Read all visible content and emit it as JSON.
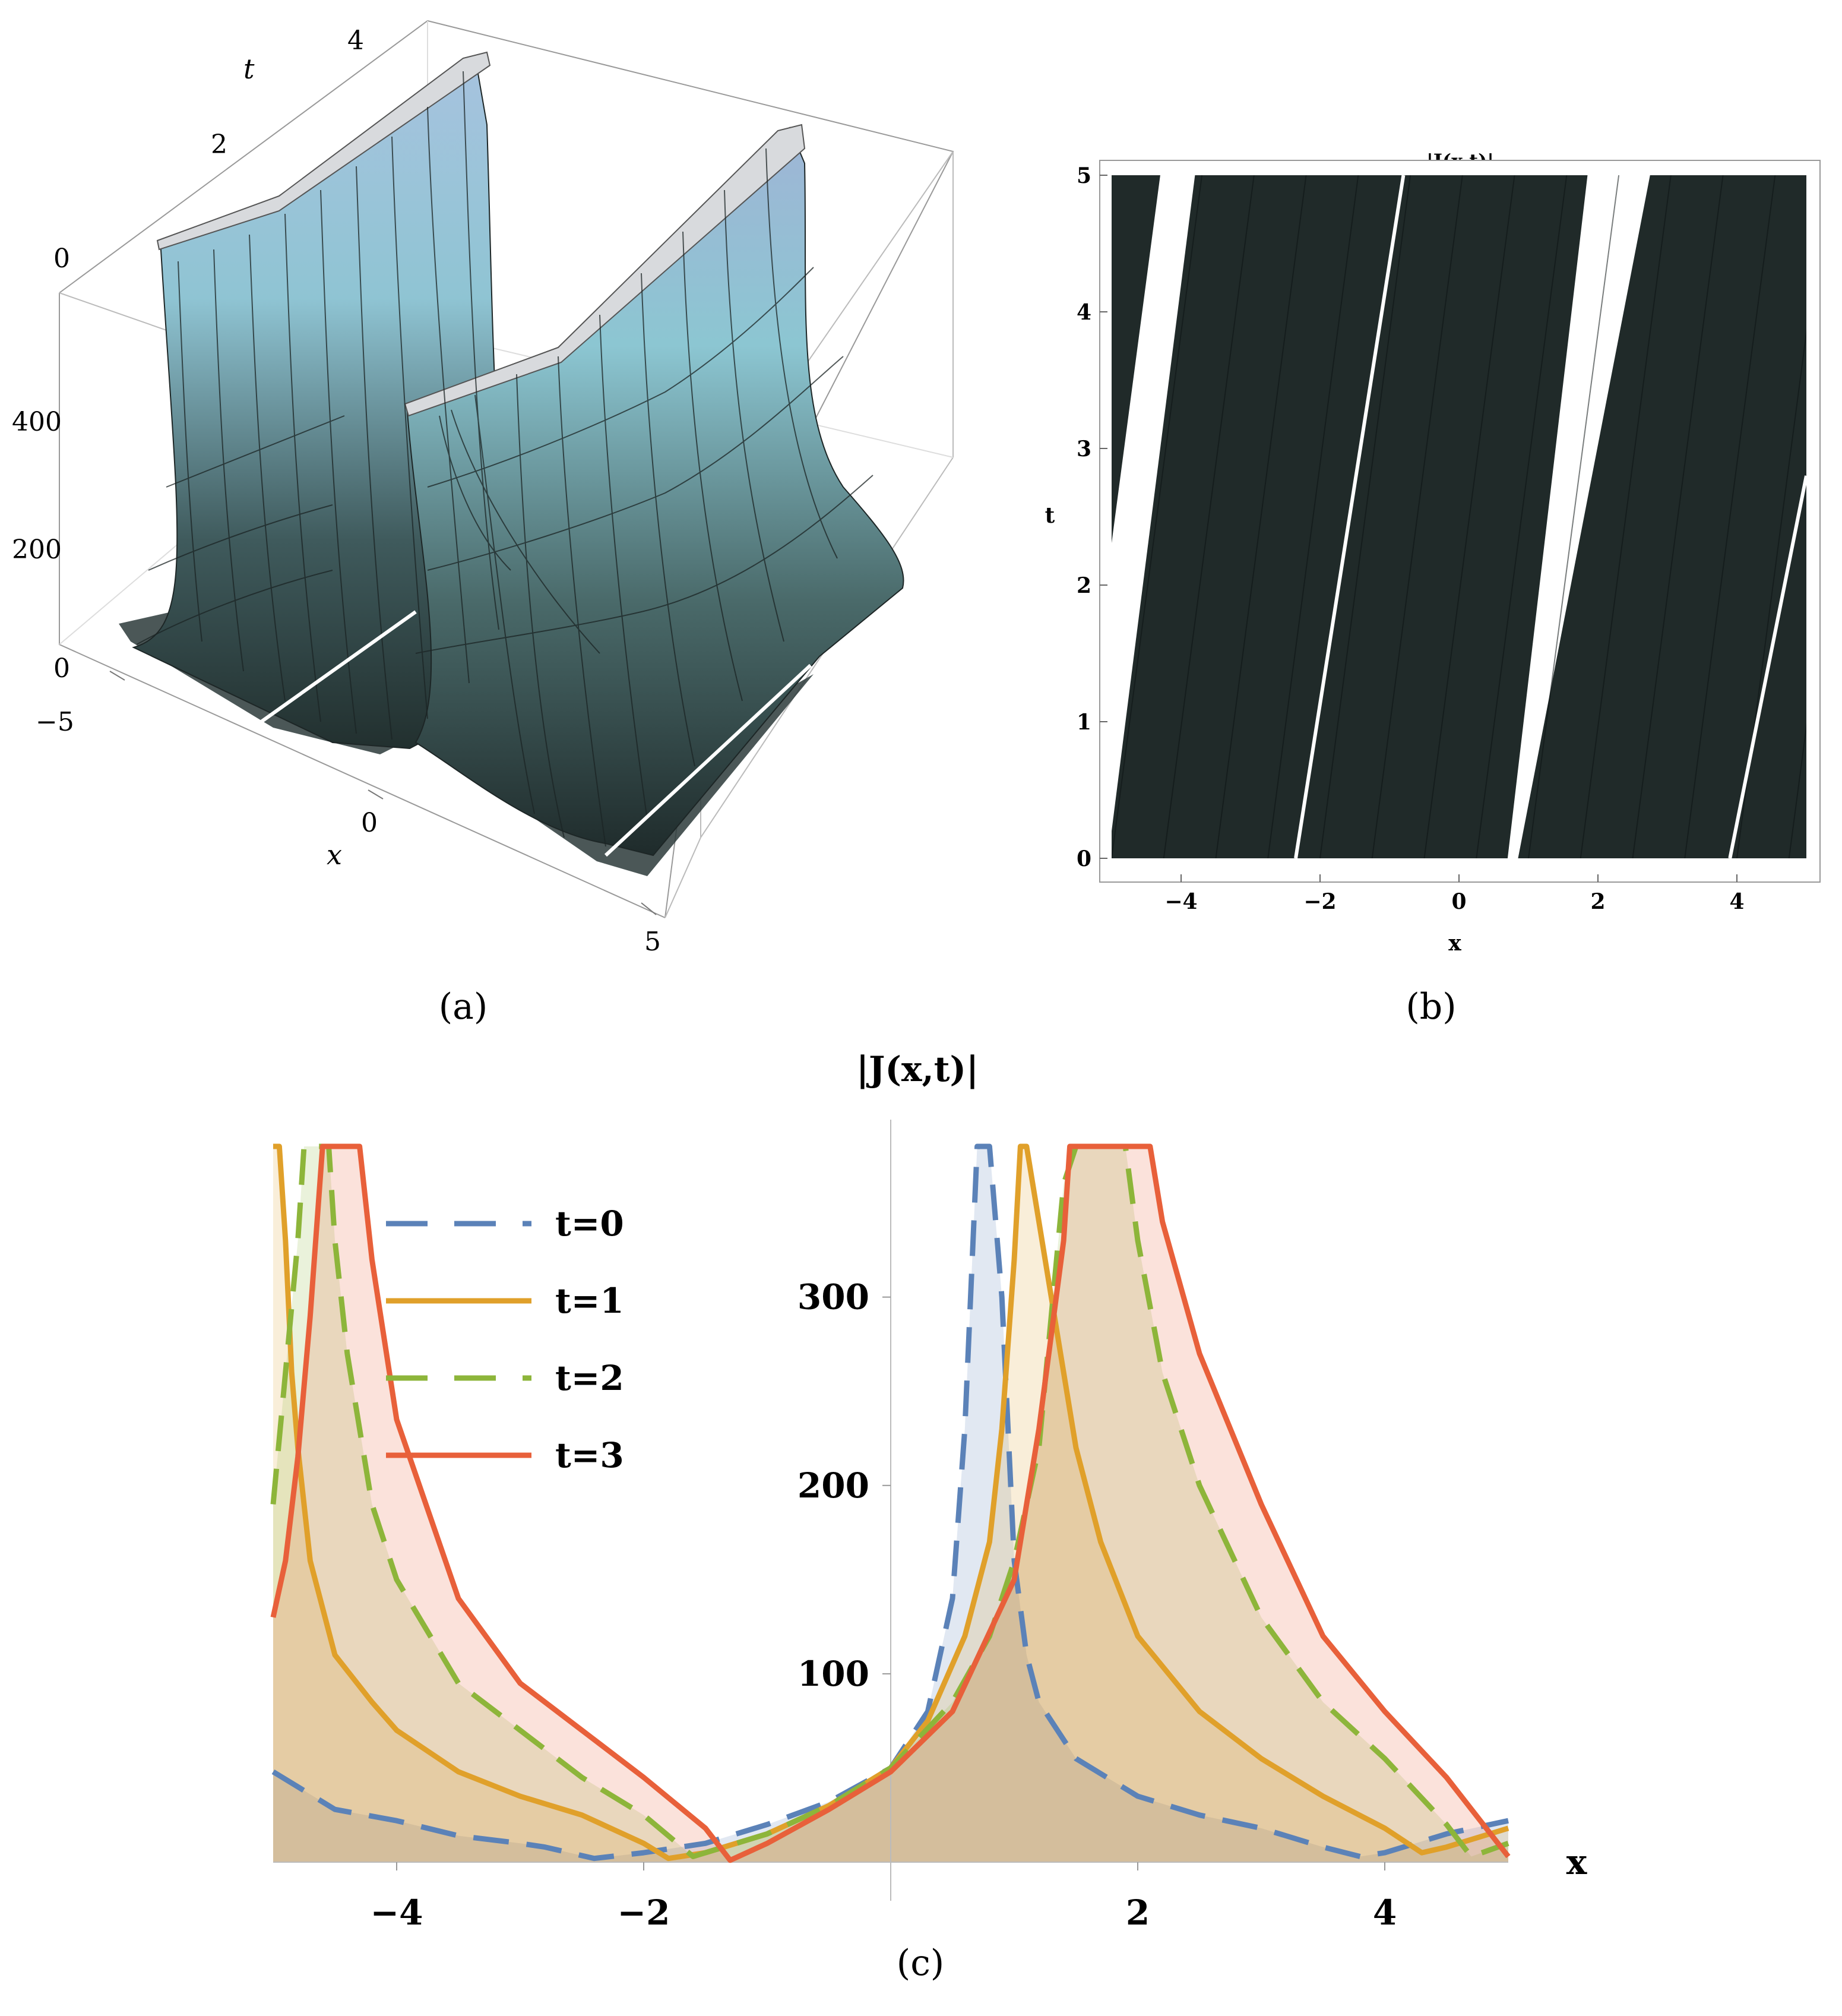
{
  "panels": {
    "a": {
      "caption": "(a)"
    },
    "b": {
      "caption": "(b)"
    },
    "c": {
      "caption": "(c)"
    }
  },
  "panel_a": {
    "x_label": "x",
    "t_label": "t",
    "x_ticks": [
      "−5",
      "0",
      "5"
    ],
    "t_ticks": [
      "0",
      "2",
      "4"
    ],
    "z_ticks": [
      "0",
      "200",
      "400"
    ],
    "surface_color_top": "#a9d4e0",
    "surface_color_bottom": "#22302f"
  },
  "chart_data": [
    {
      "type": "surface3d",
      "panel": "a",
      "xlabel": "x",
      "ylabel": "t",
      "xlim": [
        -5,
        5
      ],
      "tlim": [
        0,
        5
      ],
      "zlim": [
        0,
        600
      ],
      "description_ridges": [
        {
          "x_at_t0": -4.6,
          "slope": 0.18
        },
        {
          "x_at_t0": 0.8,
          "slope": 0.18
        }
      ]
    },
    {
      "type": "heatmap",
      "panel": "b",
      "title": "|J(x,t)|",
      "xlabel": "x",
      "ylabel": "t",
      "xlim": [
        -5,
        5
      ],
      "ylim": [
        0,
        5
      ],
      "x_ticks": [
        -4,
        -2,
        0,
        2,
        4
      ],
      "y_ticks": [
        0,
        1,
        2,
        3,
        4,
        5
      ],
      "fill_color": "#202a29",
      "white_bands": [
        {
          "x_left_t0": -5.6,
          "x_right_t0": -5.05,
          "x_left_t5": -4.3,
          "x_right_t5": -3.8
        },
        {
          "x_left_t0": 0.7,
          "x_right_t0": 0.85,
          "x_left_t5": 1.85,
          "x_right_t5": 2.75
        }
      ],
      "white_lines": [
        {
          "x_t0": -2.35,
          "x_t5": -0.8
        },
        {
          "x_t0": 3.9,
          "x_t5": 5.0,
          "t_end": 2.8
        }
      ]
    },
    {
      "type": "line",
      "panel": "c",
      "title": "|J(x,t)|",
      "xlabel": "x",
      "ylabel": "",
      "xlim": [
        -5,
        5
      ],
      "ylim": [
        0,
        380
      ],
      "x_ticks": [
        -4,
        -2,
        2,
        4
      ],
      "y_ticks": [
        100,
        200,
        300
      ],
      "series": [
        {
          "name": "t=0",
          "color": "#5b82b8",
          "dash": "dash",
          "t": 0,
          "x": [
            -5,
            -4.5,
            -4,
            -3.5,
            -3,
            -2.8,
            -2.4,
            -2,
            -1.5,
            -1,
            -0.5,
            0,
            0.3,
            0.5,
            0.6,
            0.7,
            0.8,
            0.9,
            1.0,
            1.1,
            1.2,
            1.5,
            2,
            2.5,
            3,
            3.5,
            3.8,
            4,
            4.5,
            5
          ],
          "y": [
            48,
            28,
            22,
            14,
            10,
            8,
            2,
            5,
            10,
            20,
            32,
            50,
            80,
            140,
            230,
            380,
            380,
            300,
            160,
            110,
            85,
            55,
            35,
            25,
            18,
            8,
            3,
            5,
            15,
            22
          ]
        },
        {
          "name": "t=1",
          "color": "#e0a02a",
          "dash": "solid",
          "t": 1,
          "x": [
            -5,
            -4.95,
            -4.9,
            -4.85,
            -4.8,
            -4.7,
            -4.5,
            -4.2,
            -4,
            -3.5,
            -3,
            -2.5,
            -2,
            -1.8,
            -1.5,
            -1,
            -0.5,
            0,
            0.3,
            0.6,
            0.8,
            0.9,
            1.0,
            1.05,
            1.1,
            1.3,
            1.5,
            1.7,
            2,
            2.5,
            3,
            3.5,
            4,
            4.3,
            4.5,
            5
          ],
          "y": [
            380,
            380,
            330,
            260,
            220,
            160,
            110,
            85,
            70,
            48,
            35,
            25,
            10,
            2,
            5,
            15,
            30,
            50,
            75,
            120,
            170,
            230,
            320,
            380,
            380,
            300,
            220,
            170,
            120,
            80,
            55,
            35,
            18,
            5,
            8,
            18
          ]
        },
        {
          "name": "t=2",
          "color": "#8db53a",
          "dash": "dash",
          "t": 2,
          "x": [
            -5,
            -4.9,
            -4.8,
            -4.75,
            -4.7,
            -4.65,
            -4.55,
            -4.5,
            -4.4,
            -4.2,
            -4,
            -3.5,
            -3,
            -2.5,
            -2,
            -1.6,
            -1.5,
            -1,
            -0.5,
            0,
            0.5,
            0.8,
            1.0,
            1.2,
            1.3,
            1.4,
            1.5,
            1.8,
            1.9,
            2.0,
            2.2,
            2.5,
            3,
            3.5,
            4,
            4.5,
            4.7,
            5
          ],
          "y": [
            190,
            260,
            330,
            380,
            380,
            380,
            380,
            330,
            270,
            190,
            150,
            95,
            70,
            45,
            25,
            3,
            5,
            15,
            30,
            50,
            85,
            120,
            160,
            220,
            290,
            360,
            380,
            380,
            380,
            330,
            260,
            200,
            130,
            85,
            55,
            20,
            3,
            10
          ]
        },
        {
          "name": "t=3",
          "color": "#e8603a",
          "dash": "solid",
          "t": 3,
          "x": [
            -5,
            -4.9,
            -4.8,
            -4.7,
            -4.6,
            -4.5,
            -4.4,
            -4.3,
            -4.2,
            -4,
            -3.5,
            -3,
            -2.5,
            -2,
            -1.5,
            -1.3,
            -1,
            -0.5,
            0,
            0.5,
            1,
            1.2,
            1.4,
            1.45,
            1.5,
            1.8,
            2.0,
            2.1,
            2.2,
            2.5,
            3,
            3.5,
            4,
            4.5,
            5
          ],
          "y": [
            130,
            160,
            215,
            290,
            380,
            380,
            380,
            380,
            320,
            235,
            140,
            95,
            70,
            45,
            18,
            1,
            10,
            28,
            48,
            80,
            150,
            230,
            330,
            380,
            380,
            380,
            380,
            380,
            340,
            270,
            190,
            120,
            80,
            45,
            3
          ]
        }
      ],
      "legend": "upper-left"
    }
  ]
}
